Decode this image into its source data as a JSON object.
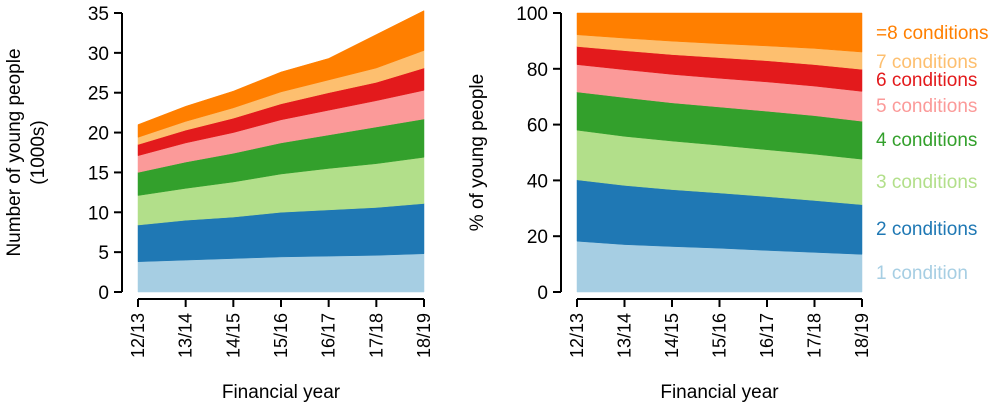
{
  "chart_data": [
    {
      "type": "area",
      "stacked": true,
      "xlabel": "Financial year",
      "ylabel_lines": [
        "Number of young people",
        "(1000s)"
      ],
      "ylim": [
        0,
        35
      ],
      "yticks": [
        "0",
        "5",
        "10",
        "15",
        "20",
        "25",
        "30",
        "35"
      ],
      "categories": [
        "12/13",
        "13/14",
        "14/15",
        "15/16",
        "16/17",
        "17/18",
        "18/19"
      ],
      "series": [
        {
          "color": "#a6cee3",
          "values": [
            3.8,
            4.0,
            4.2,
            4.4,
            4.5,
            4.6,
            4.8
          ]
        },
        {
          "color": "#1f78b4",
          "values": [
            4.6,
            5.0,
            5.2,
            5.6,
            5.8,
            6.0,
            6.3
          ]
        },
        {
          "color": "#b2df8a",
          "values": [
            3.7,
            4.0,
            4.4,
            4.8,
            5.2,
            5.5,
            5.8
          ]
        },
        {
          "color": "#33a02c",
          "values": [
            2.9,
            3.3,
            3.6,
            3.9,
            4.2,
            4.6,
            4.8
          ]
        },
        {
          "color": "#fb9a99",
          "values": [
            2.1,
            2.4,
            2.6,
            2.9,
            3.1,
            3.3,
            3.6
          ]
        },
        {
          "color": "#e31a1c",
          "values": [
            1.4,
            1.6,
            1.8,
            2.0,
            2.2,
            2.3,
            2.8
          ]
        },
        {
          "color": "#fdbf6f",
          "values": [
            0.9,
            1.1,
            1.3,
            1.5,
            1.6,
            1.8,
            2.2
          ]
        },
        {
          "color": "#ff7f00",
          "values": [
            1.6,
            1.9,
            2.1,
            2.5,
            2.7,
            4.2,
            5.0
          ]
        }
      ]
    },
    {
      "type": "area",
      "stacked": true,
      "xlabel": "Financial year",
      "ylabel_lines": [
        "% of young people"
      ],
      "ylim": [
        0,
        100
      ],
      "yticks": [
        "0",
        "20",
        "40",
        "60",
        "80",
        "100"
      ],
      "categories": [
        "12/13",
        "13/14",
        "14/15",
        "15/16",
        "16/17",
        "17/18",
        "18/19"
      ],
      "series": [
        {
          "name": "1 condition",
          "color": "#a6cee3",
          "values": [
            18.2,
            17.0,
            16.3,
            15.7,
            14.9,
            14.2,
            13.5
          ]
        },
        {
          "name": "2 conditions",
          "color": "#1f78b4",
          "values": [
            22.0,
            21.2,
            20.4,
            19.8,
            19.3,
            18.6,
            17.8
          ]
        },
        {
          "name": "3 conditions",
          "color": "#b2df8a",
          "values": [
            17.8,
            17.6,
            17.4,
            17.1,
            16.8,
            16.6,
            16.3
          ]
        },
        {
          "name": "4 conditions",
          "color": "#33a02c",
          "values": [
            13.7,
            13.9,
            13.7,
            13.7,
            13.8,
            13.8,
            13.6
          ]
        },
        {
          "name": "5 conditions",
          "color": "#fb9a99",
          "values": [
            9.8,
            10.0,
            10.2,
            10.3,
            10.5,
            10.6,
            10.7
          ]
        },
        {
          "name": "6 conditions",
          "color": "#e31a1c",
          "values": [
            6.5,
            6.8,
            7.1,
            7.4,
            7.6,
            7.7,
            7.9
          ]
        },
        {
          "name": "7 conditions",
          "color": "#fdbf6f",
          "values": [
            4.2,
            4.5,
            4.8,
            5.0,
            5.3,
            5.8,
            6.2
          ]
        },
        {
          "name": "=8 conditions",
          "color": "#ff7f00",
          "values": [
            7.8,
            9.0,
            10.1,
            11.0,
            11.8,
            12.7,
            14.0
          ]
        }
      ]
    }
  ]
}
